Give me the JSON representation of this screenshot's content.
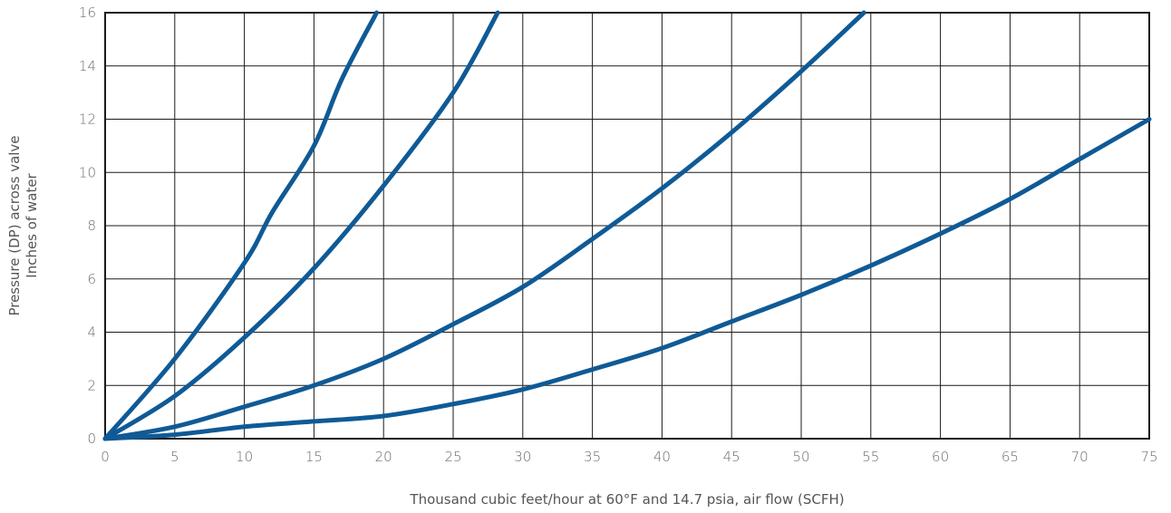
{
  "chart_data": {
    "type": "line",
    "title": "",
    "xlabel": "Thousand cubic feet/hour at 60°F and 14.7 psia, air flow (SCFH)",
    "ylabel_lines": [
      "Pressure (DP) across valve",
      "Inches of water"
    ],
    "xlim": [
      0,
      75
    ],
    "ylim": [
      0,
      16
    ],
    "x_ticks": [
      0,
      5,
      10,
      15,
      20,
      25,
      30,
      35,
      40,
      45,
      50,
      55,
      60,
      65,
      70,
      75
    ],
    "y_ticks": [
      0,
      2,
      4,
      6,
      8,
      10,
      12,
      14,
      16
    ],
    "grid": true,
    "line_color": "#0f5a96",
    "series": [
      {
        "x": [
          0,
          5,
          10,
          12,
          15,
          17,
          19.5
        ],
        "y": [
          0,
          3.0,
          6.6,
          8.5,
          11.0,
          13.5,
          16
        ]
      },
      {
        "x": [
          0,
          5,
          10,
          15,
          20,
          25,
          28.2
        ],
        "y": [
          0,
          1.6,
          3.8,
          6.4,
          9.5,
          13.0,
          16
        ]
      },
      {
        "x": [
          0,
          5,
          10,
          15,
          20,
          25,
          30,
          35,
          40,
          45,
          50,
          54.5
        ],
        "y": [
          0,
          0.45,
          1.2,
          2.0,
          3.0,
          4.3,
          5.7,
          7.5,
          9.4,
          11.5,
          13.8,
          16
        ]
      },
      {
        "x": [
          0,
          5,
          10,
          15,
          20,
          25,
          30,
          35,
          40,
          45,
          50,
          55,
          60,
          65,
          70,
          75
        ],
        "y": [
          0,
          0.15,
          0.45,
          0.65,
          0.85,
          1.3,
          1.85,
          2.6,
          3.4,
          4.4,
          5.4,
          6.5,
          7.7,
          9.0,
          10.5,
          12.0
        ]
      }
    ]
  }
}
